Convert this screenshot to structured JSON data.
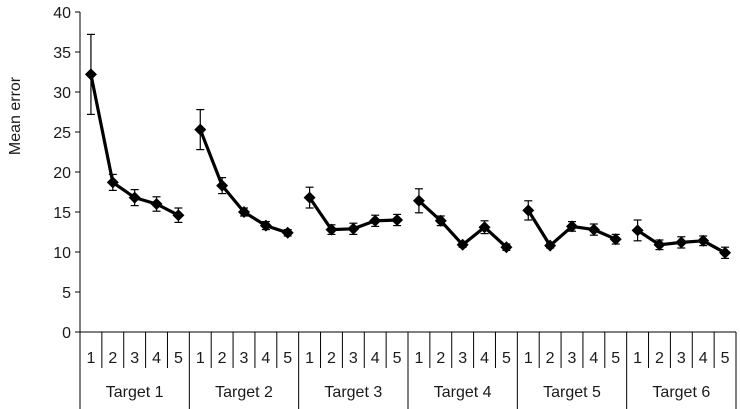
{
  "chart_data": {
    "type": "line",
    "ylabel": "Mean error",
    "ylim": [
      0,
      40
    ],
    "yticks": [
      0,
      5,
      10,
      15,
      20,
      25,
      30,
      35,
      40
    ],
    "grid": false,
    "legend": "none",
    "color": "#000000",
    "groups": [
      {
        "label": "Target 1",
        "x": [
          "1",
          "2",
          "3",
          "4",
          "5"
        ],
        "values": [
          32.2,
          18.7,
          16.8,
          16.0,
          14.6
        ],
        "errors": [
          5.0,
          1.0,
          1.0,
          0.9,
          0.9
        ]
      },
      {
        "label": "Target 2",
        "x": [
          "1",
          "2",
          "3",
          "4",
          "5"
        ],
        "values": [
          25.3,
          18.3,
          15.0,
          13.3,
          12.4
        ],
        "errors": [
          2.5,
          1.0,
          0.5,
          0.5,
          0.4
        ]
      },
      {
        "label": "Target 3",
        "x": [
          "1",
          "2",
          "3",
          "4",
          "5"
        ],
        "values": [
          16.8,
          12.8,
          12.9,
          13.9,
          14.0
        ],
        "errors": [
          1.3,
          0.6,
          0.7,
          0.7,
          0.7
        ]
      },
      {
        "label": "Target 4",
        "x": [
          "1",
          "2",
          "3",
          "4",
          "5"
        ],
        "values": [
          16.4,
          13.9,
          10.9,
          13.1,
          10.6
        ],
        "errors": [
          1.5,
          0.6,
          0.3,
          0.8,
          0.4
        ]
      },
      {
        "label": "Target 5",
        "x": [
          "1",
          "2",
          "3",
          "4",
          "5"
        ],
        "values": [
          15.2,
          10.8,
          13.2,
          12.8,
          11.6
        ],
        "errors": [
          1.2,
          0.3,
          0.6,
          0.7,
          0.6
        ]
      },
      {
        "label": "Target 6",
        "x": [
          "1",
          "2",
          "3",
          "4",
          "5"
        ],
        "values": [
          12.7,
          10.9,
          11.2,
          11.4,
          9.9
        ],
        "errors": [
          1.3,
          0.6,
          0.7,
          0.6,
          0.7
        ]
      }
    ]
  }
}
